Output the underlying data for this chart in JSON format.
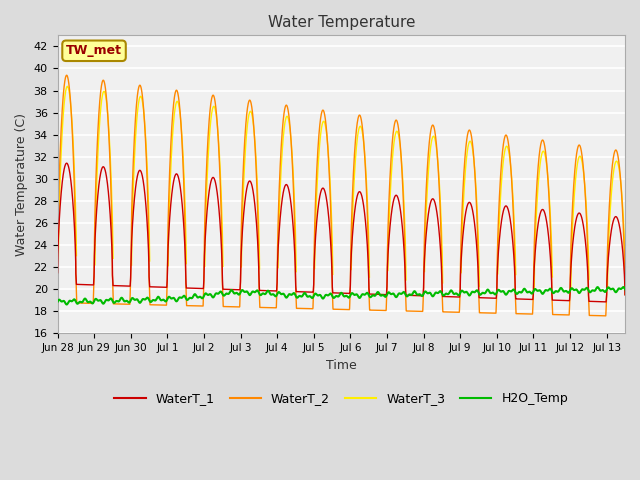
{
  "title": "Water Temperature",
  "xlabel": "Time",
  "ylabel": "Water Temperature (C)",
  "ylim": [
    16,
    43
  ],
  "yticks": [
    16,
    18,
    20,
    22,
    24,
    26,
    28,
    30,
    32,
    34,
    36,
    38,
    40,
    42
  ],
  "background_color": "#dcdcdc",
  "plot_bg_color": "#f0f0f0",
  "grid_color": "#ffffff",
  "annotation_text": "TW_met",
  "annotation_color": "#990000",
  "annotation_bg": "#ffff99",
  "annotation_border": "#aa8800",
  "colors": {
    "WaterT_1": "#cc0000",
    "WaterT_2": "#ff8800",
    "WaterT_3": "#ffee00",
    "H2O_Temp": "#00bb00"
  },
  "n_days": 15.5,
  "tick_labels": [
    "Jun 28",
    "Jun 29",
    "Jun 30",
    "Jul 1",
    "Jul 2",
    "Jul 3",
    "Jul 4",
    "Jul 5",
    "Jul 6",
    "Jul 7",
    "Jul 8",
    "Jul 9",
    "Jul 10",
    "Jul 11",
    "Jul 12",
    "Jul 13"
  ]
}
